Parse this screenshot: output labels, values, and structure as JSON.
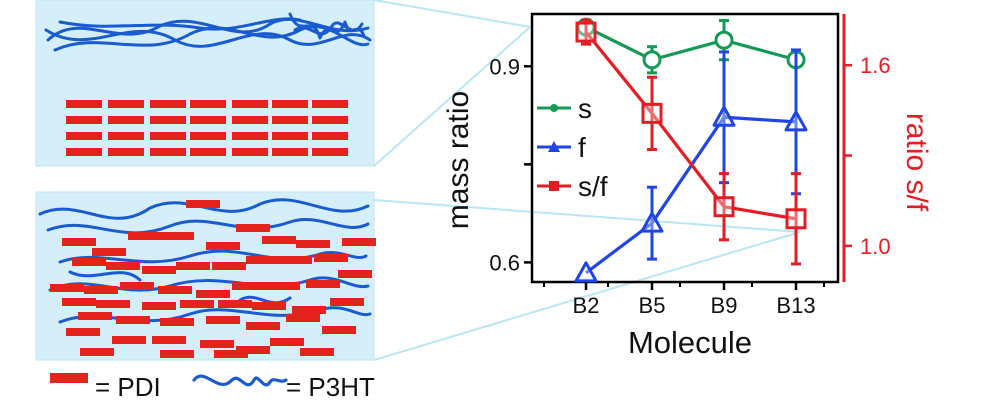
{
  "legend_key": {
    "pdi_label": "= PDI",
    "p3ht_label": "= P3HT"
  },
  "colors": {
    "s": "#149a55",
    "f": "#1f45e6",
    "sf": "#e51c23",
    "panel": "#d4effa",
    "pdi": "#e3231c",
    "p3ht": "#1a5bd0"
  },
  "chart_data": {
    "type": "line",
    "xlabel": "Molecule",
    "ylabel_left": "mass ratio",
    "ylabel_right": "ratio s/f",
    "categories": [
      "B2",
      "B5",
      "B9",
      "B13"
    ],
    "ylim_left": [
      0.57,
      0.98
    ],
    "ylim_right": [
      0.88,
      1.77
    ],
    "yticks_left": [
      {
        "value": 0.6,
        "label": "0.6"
      },
      {
        "value": 0.75,
        "label": ""
      },
      {
        "value": 0.9,
        "label": "0.9"
      }
    ],
    "yticks_right": [
      {
        "value": 1.0,
        "label": "1.0"
      },
      {
        "value": 1.3,
        "label": ""
      },
      {
        "value": 1.6,
        "label": "1.6"
      }
    ],
    "series": [
      {
        "name": "s",
        "key": "s",
        "axis": "left",
        "marker": "circle",
        "values": [
          0.96,
          0.91,
          0.94,
          0.91
        ],
        "err": [
          0,
          0.02,
          0.03,
          0
        ]
      },
      {
        "name": "f",
        "key": "f",
        "axis": "left",
        "marker": "triangle",
        "values": [
          0.584,
          0.66,
          0.822,
          0.815
        ],
        "err": [
          0,
          0.055,
          0.1,
          0.11
        ]
      },
      {
        "name": "s/f",
        "key": "sf",
        "axis": "right",
        "marker": "square",
        "values": [
          1.71,
          1.44,
          1.13,
          1.09
        ],
        "err": [
          0.04,
          0.12,
          0.11,
          0.15
        ]
      }
    ]
  }
}
